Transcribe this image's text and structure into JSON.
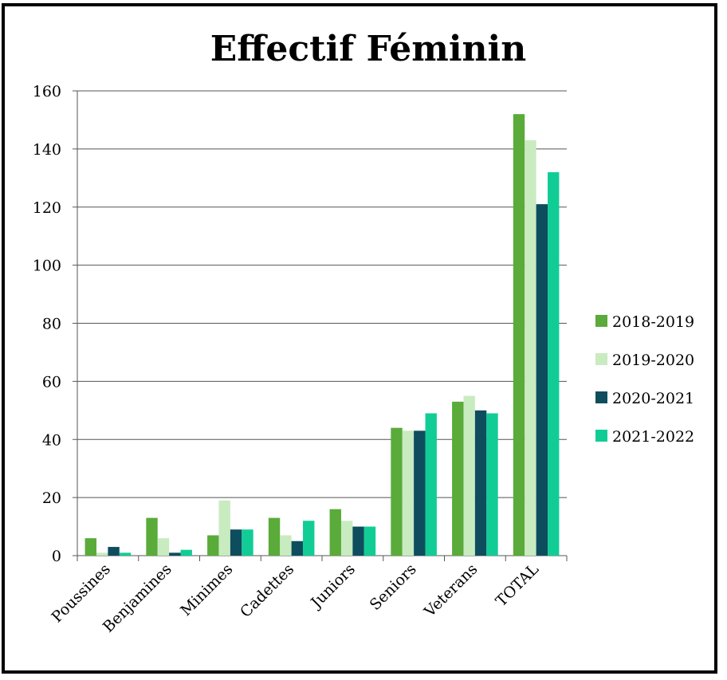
{
  "chart_data": {
    "type": "bar",
    "title": "Effectif Féminin",
    "xlabel": "",
    "ylabel": "",
    "ylim": [
      0,
      160
    ],
    "yticks": [
      0,
      20,
      40,
      60,
      80,
      100,
      120,
      140,
      160
    ],
    "grid": true,
    "legend_position": "right",
    "categories": [
      "Poussines",
      "Benjamines",
      "Minimes",
      "Cadettes",
      "Juniors",
      "Seniors",
      "Veterans",
      "TOTAL"
    ],
    "series": [
      {
        "name": "2018-2019",
        "color": "#5aab3a",
        "values": [
          6,
          13,
          7,
          13,
          16,
          44,
          53,
          152
        ]
      },
      {
        "name": "2019-2020",
        "color": "#c9ebc0",
        "values": [
          1,
          6,
          19,
          7,
          12,
          43,
          55,
          143
        ]
      },
      {
        "name": "2020-2021",
        "color": "#0e4d5e",
        "values": [
          3,
          1,
          9,
          5,
          10,
          43,
          50,
          121
        ]
      },
      {
        "name": "2021-2022",
        "color": "#12cc96",
        "values": [
          1,
          2,
          9,
          12,
          10,
          49,
          49,
          132
        ]
      }
    ]
  }
}
